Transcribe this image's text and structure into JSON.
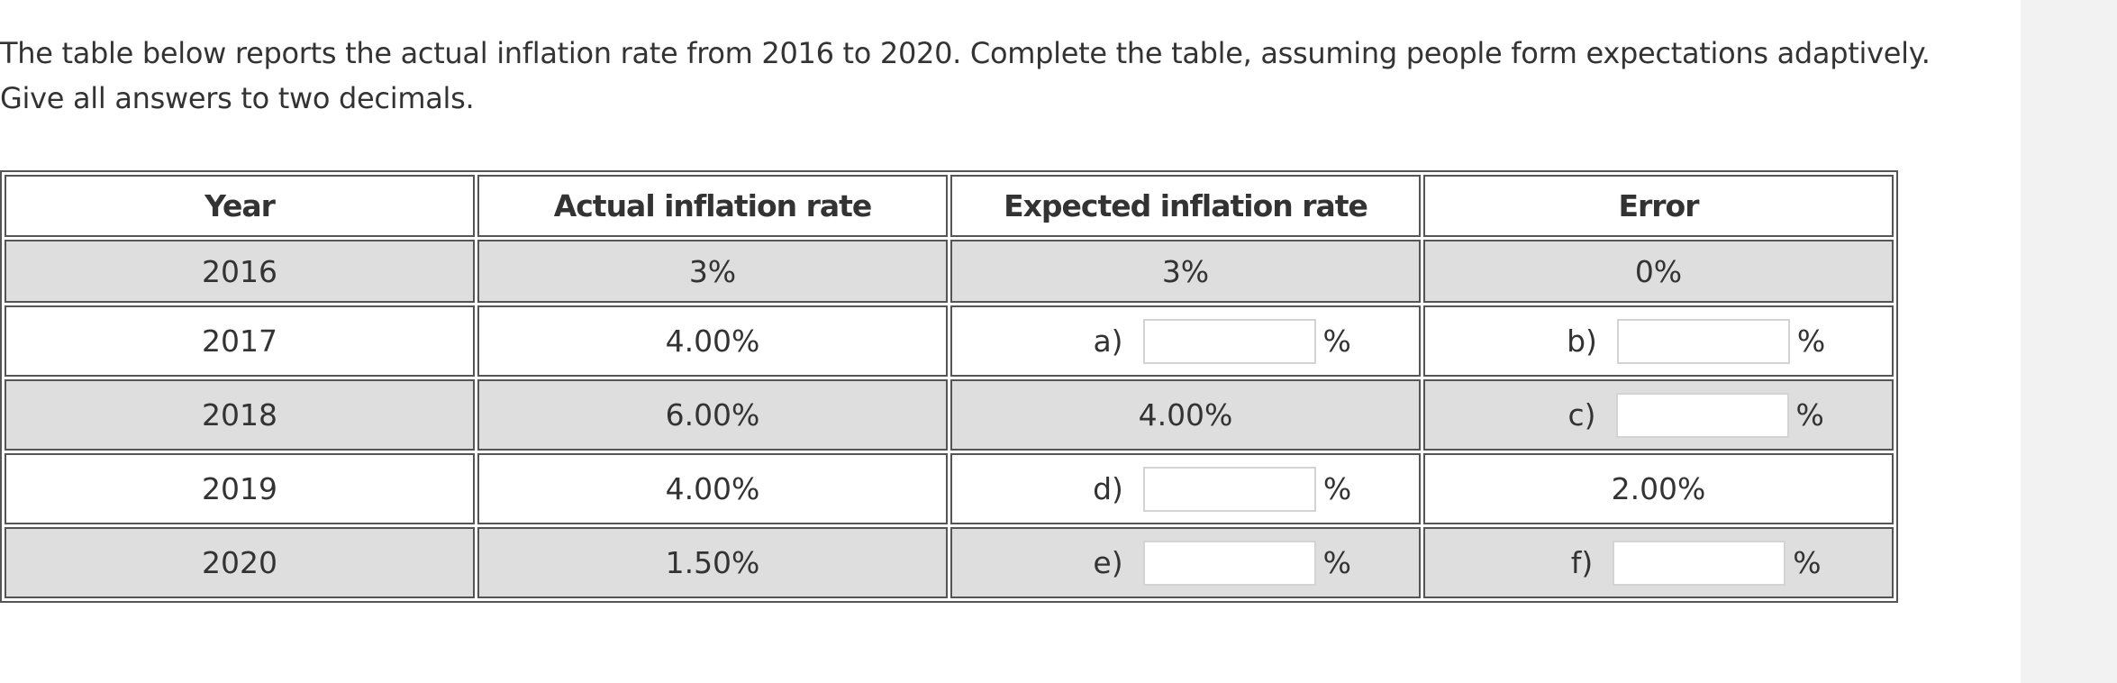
{
  "question": {
    "line1": "The table below reports the actual inflation rate from 2016 to 2020. Complete the table, assuming people form expectations adaptively.",
    "line2": "Give all answers to two decimals."
  },
  "table": {
    "headers": {
      "year": "Year",
      "actual": "Actual inflation rate",
      "expected": "Expected inflation rate",
      "error": "Error"
    },
    "rows": [
      {
        "year": "2016",
        "actual": "3%",
        "expected": "3%",
        "error": "0%"
      },
      {
        "year": "2017",
        "actual": "4.00%",
        "expected_input": {
          "label": "a)",
          "value": "",
          "unit": "%"
        },
        "error_input": {
          "label": "b)",
          "value": "",
          "unit": "%"
        }
      },
      {
        "year": "2018",
        "actual": "6.00%",
        "expected": "4.00%",
        "error_input": {
          "label": "c)",
          "value": "",
          "unit": "%"
        }
      },
      {
        "year": "2019",
        "actual": "4.00%",
        "expected_input": {
          "label": "d)",
          "value": "",
          "unit": "%"
        },
        "error": "2.00%"
      },
      {
        "year": "2020",
        "actual": "1.50%",
        "expected_input": {
          "label": "e)",
          "value": "",
          "unit": "%"
        },
        "error_input": {
          "label": "f)",
          "value": "",
          "unit": "%"
        }
      }
    ]
  }
}
